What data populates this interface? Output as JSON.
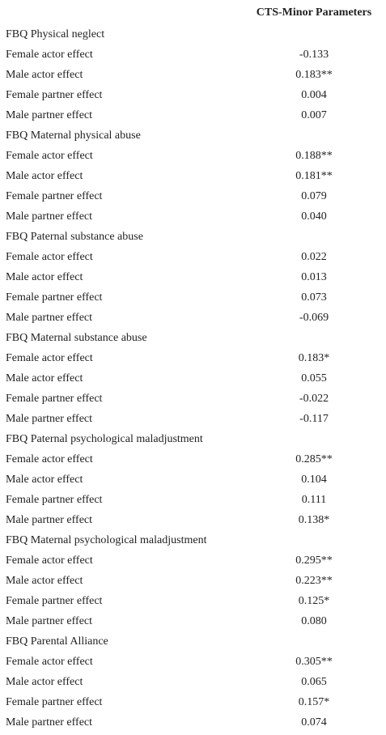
{
  "table": {
    "header": "CTS-Minor Parameters",
    "groups": [
      {
        "label": "FBQ Physical neglect",
        "rows": [
          [
            "Female actor effect",
            "-0.133"
          ],
          [
            "Male actor effect",
            "0.183**"
          ],
          [
            "Female partner effect",
            "0.004"
          ],
          [
            "Male partner effect",
            "0.007"
          ]
        ]
      },
      {
        "label": "FBQ Maternal physical abuse",
        "rows": [
          [
            "Female actor effect",
            "0.188**"
          ],
          [
            "Male actor effect",
            "0.181**"
          ],
          [
            "Female partner effect",
            "0.079"
          ],
          [
            "Male partner effect",
            "0.040"
          ]
        ]
      },
      {
        "label": "FBQ Paternal substance abuse",
        "rows": [
          [
            "Female actor effect",
            "0.022"
          ],
          [
            "Male actor effect",
            "0.013"
          ],
          [
            "Female partner effect",
            "0.073"
          ],
          [
            "Male partner effect",
            "-0.069"
          ]
        ]
      },
      {
        "label": "FBQ Maternal substance abuse",
        "rows": [
          [
            "Female actor effect",
            "0.183*"
          ],
          [
            "Male actor effect",
            "0.055"
          ],
          [
            "Female partner effect",
            "-0.022"
          ],
          [
            "Male partner effect",
            "-0.117"
          ]
        ]
      },
      {
        "label": "FBQ Paternal psychological maladjustment",
        "rows": [
          [
            "Female actor effect",
            "0.285**"
          ],
          [
            "Male actor effect",
            "0.104"
          ],
          [
            "Female partner effect",
            "0.111"
          ],
          [
            "Male partner effect",
            "0.138*"
          ]
        ]
      },
      {
        "label": "FBQ Maternal psychological maladjustment",
        "rows": [
          [
            "Female actor effect",
            "0.295**"
          ],
          [
            "Male actor effect",
            "0.223**"
          ],
          [
            "Female partner effect",
            "0.125*"
          ],
          [
            "Male partner effect",
            "0.080"
          ]
        ]
      },
      {
        "label": "FBQ Parental Alliance",
        "rows": [
          [
            "Female actor effect",
            "0.305**"
          ],
          [
            "Male actor effect",
            "0.065"
          ],
          [
            "Female partner effect",
            "0.157*"
          ],
          [
            "Male partner effect",
            "0.074"
          ]
        ]
      }
    ]
  }
}
